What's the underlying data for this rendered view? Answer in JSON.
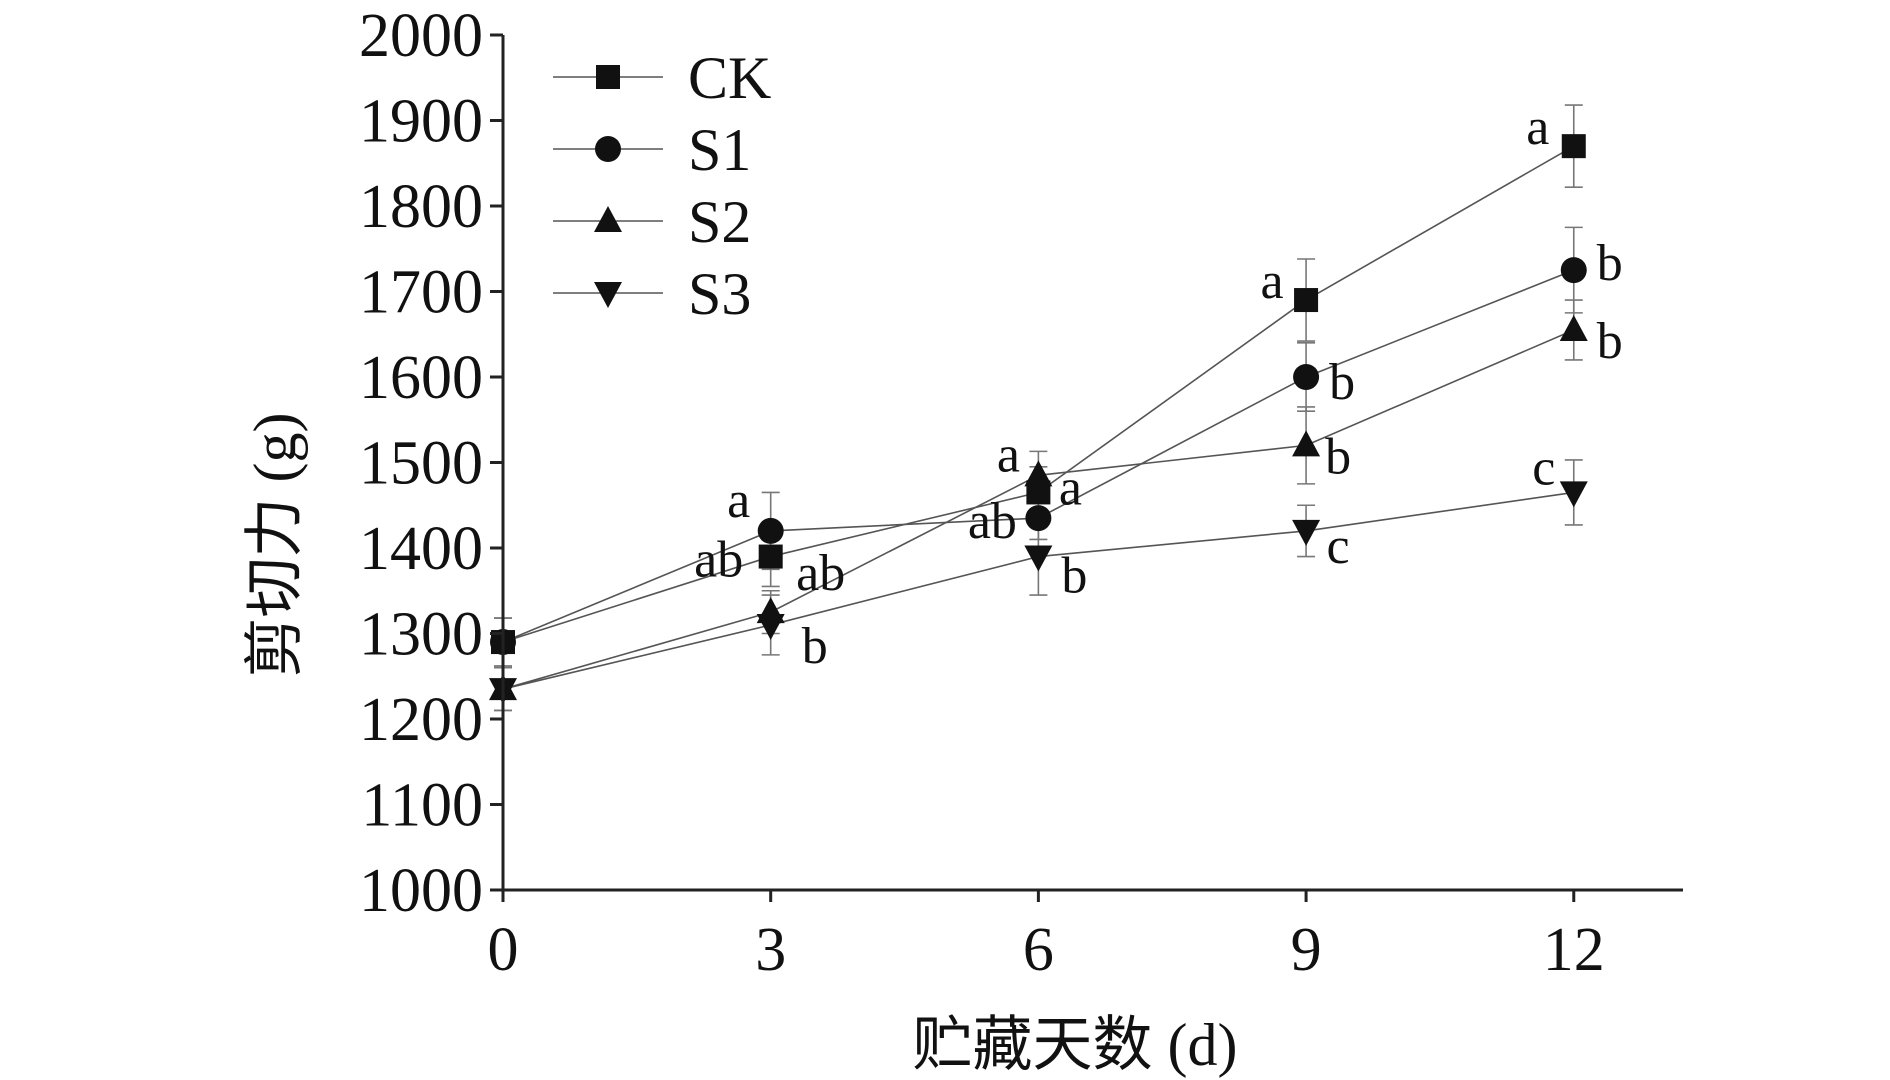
{
  "chart_data": {
    "type": "line",
    "xlabel": "贮藏天数 (d)",
    "ylabel": "剪切力 (g)",
    "x": [
      0,
      3,
      6,
      9,
      12
    ],
    "xticks": [
      "0",
      "3",
      "6",
      "9",
      "12"
    ],
    "xlim": [
      0,
      13
    ],
    "ylim": [
      1000,
      2000
    ],
    "yticks": [
      "1000",
      "1100",
      "1200",
      "1300",
      "1400",
      "1500",
      "1600",
      "1700",
      "1800",
      "1900",
      "2000"
    ],
    "legend_position": "top-left",
    "grid": false,
    "series": [
      {
        "name": "CK",
        "marker": "square",
        "values": [
          1290,
          1390,
          1465,
          1690,
          1870
        ],
        "errors": [
          28,
          35,
          30,
          48,
          48
        ],
        "labels": [
          "",
          "ab",
          "a",
          "a",
          "a"
        ]
      },
      {
        "name": "S1",
        "marker": "circle",
        "values": [
          1290,
          1420,
          1435,
          1600,
          1725
        ],
        "errors": [
          28,
          45,
          25,
          40,
          50
        ],
        "labels": [
          "",
          "a",
          "ab",
          "b",
          "b"
        ]
      },
      {
        "name": "S2",
        "marker": "triangle-up",
        "values": [
          1235,
          1325,
          1485,
          1520,
          1655
        ],
        "errors": [
          25,
          25,
          28,
          45,
          35
        ],
        "labels": [
          "",
          "ab",
          "a",
          "b",
          "b"
        ]
      },
      {
        "name": "S3",
        "marker": "triangle-down",
        "values": [
          1235,
          1310,
          1390,
          1420,
          1465
        ],
        "errors": [
          25,
          35,
          45,
          30,
          38
        ],
        "labels": [
          "",
          "b",
          "b",
          "c",
          "c"
        ]
      }
    ],
    "colors": {
      "line": "#555555",
      "marker": "#111111",
      "axis": "#222222"
    }
  }
}
